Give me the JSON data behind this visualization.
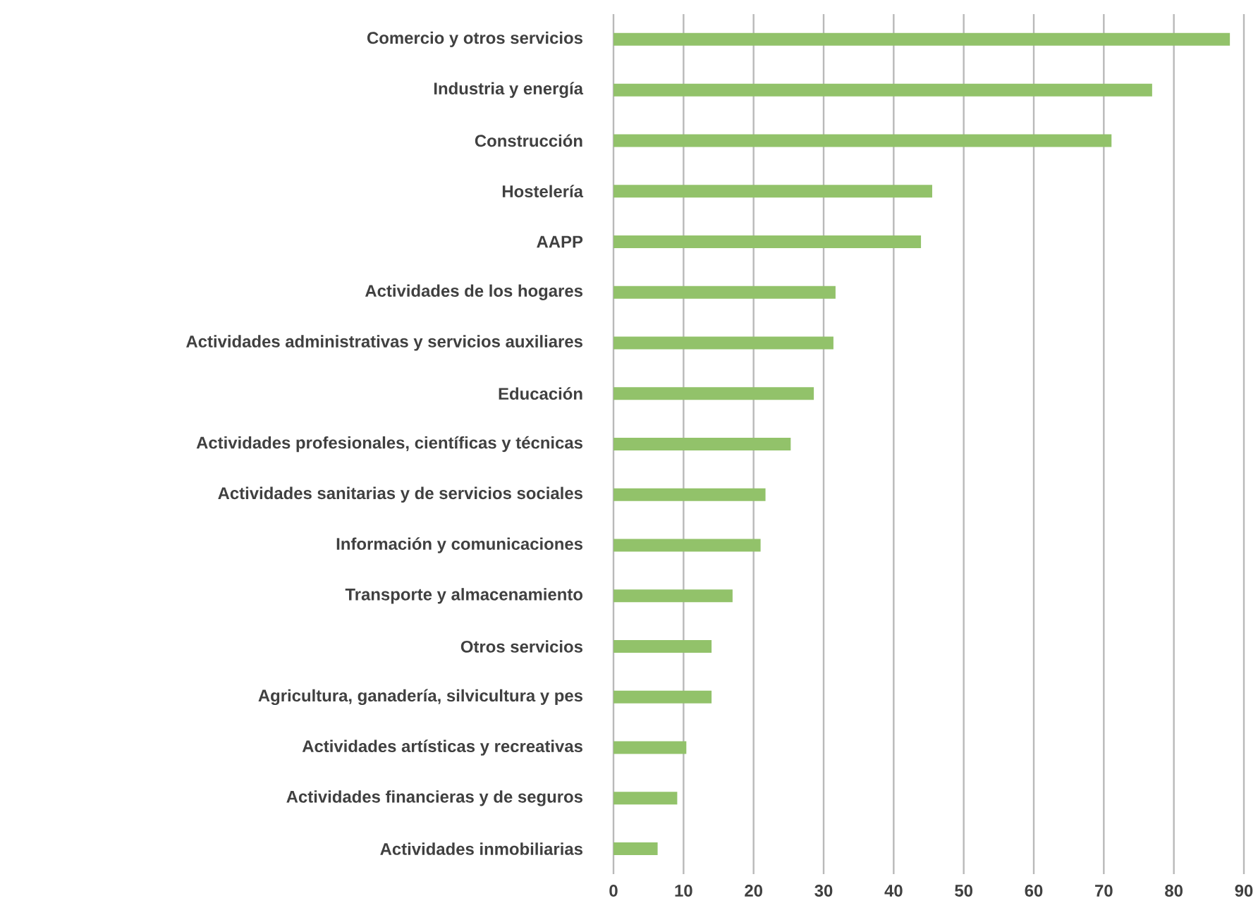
{
  "chart_data": {
    "type": "bar",
    "orientation": "horizontal",
    "color": "#92c26a",
    "grid": "x",
    "categories": [
      "Comercio y otros servicios",
      "Industria y energía",
      "Construcción",
      "Hostelería",
      "AAPP",
      "Actividades de los hogares",
      "Actividades administrativas y servicios auxiliares",
      "Educación",
      "Actividades profesionales, científicas y técnicas",
      "Actividades sanitarias y de servicios sociales",
      "Información y comunicaciones",
      "Transporte y almacenamiento",
      "Otros servicios",
      "Agricultura, ganadería, silvicultura y pes",
      "Actividades artísticas y recreativas",
      "Actividades financieras y de seguros",
      "Actividades inmobiliarias"
    ],
    "values": [
      88.0,
      76.9,
      71.1,
      45.5,
      43.9,
      31.7,
      31.4,
      28.6,
      25.3,
      21.7,
      21.0,
      17.0,
      14.0,
      14.0,
      10.4,
      9.1,
      6.3
    ],
    "xlim": [
      0,
      90
    ],
    "xticks": [
      0,
      10,
      20,
      30,
      40,
      50,
      60,
      70,
      80,
      90
    ]
  }
}
